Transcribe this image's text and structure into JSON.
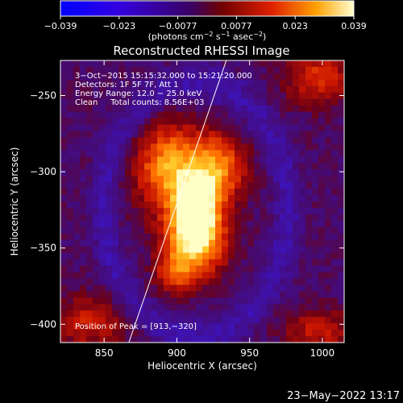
{
  "colorbar": {
    "ticks": [
      "−0.039",
      "−0.023",
      "−0.0077",
      "0.0077",
      "0.023",
      "0.039"
    ],
    "units_main": "(photons cm",
    "units_sup1": "−2",
    "units_mid": " s",
    "units_sup2": "−1",
    "units_end": " asec",
    "units_sup3": "−2",
    "units_close": ")"
  },
  "footer": {
    "date": "23−May−2022 13:17"
  },
  "chart_data": {
    "type": "heatmap",
    "title": "Reconstructed RHESSI Image",
    "xlabel": "Heliocentric X (arcsec)",
    "ylabel": "Heliocentric Y (arcsec)",
    "xlim": [
      820,
      1015
    ],
    "ylim": [
      -412,
      -227
    ],
    "x_ticks": [
      850,
      900,
      950,
      1000
    ],
    "x_tick_labels": [
      "850",
      "900",
      "950",
      "1000"
    ],
    "y_ticks": [
      -250,
      -300,
      -350,
      -400
    ],
    "y_tick_labels": [
      "−250",
      "−300",
      "−350",
      "−400"
    ],
    "colorbar_range": [
      -0.039,
      0.039
    ],
    "annotations": [
      "3−Oct−2015 15:15:32.000 to 15:21:20.000",
      "Detectors: 1F 5F 7F, Att 1",
      "Energy Range: 12.0 − 25.0 keV",
      "Clean     Total counts: 8.56E+03"
    ],
    "peak_label": "Position of Peak = [913,−320]",
    "peak": [
      913,
      -320
    ],
    "limb_line": [
      [
        867,
        -412
      ],
      [
        934,
        -227
      ]
    ]
  }
}
